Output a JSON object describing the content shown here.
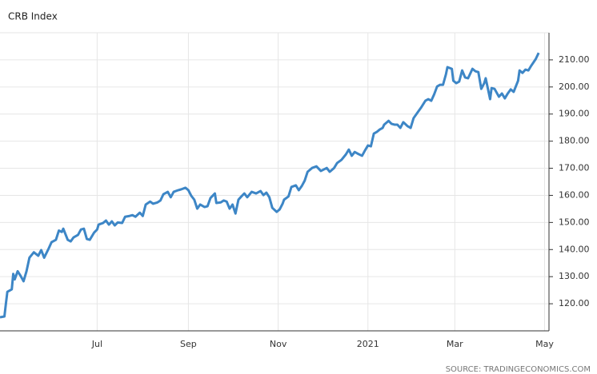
{
  "chart_data": {
    "type": "line",
    "title": "CRB Index",
    "source": "SOURCE: TRADINGECONOMICS.COM",
    "x": [
      0,
      3,
      4,
      5,
      8,
      9,
      10,
      12,
      14,
      16,
      18,
      20,
      23,
      26,
      28,
      30,
      33,
      35,
      38,
      40,
      42,
      43,
      46,
      48,
      50,
      53,
      55,
      57,
      59,
      61,
      64,
      66,
      67,
      70,
      72,
      74,
      76,
      78,
      80,
      83,
      85,
      88,
      90,
      92,
      95,
      97,
      99,
      102,
      104,
      107,
      109,
      111,
      114,
      116,
      118,
      121,
      123,
      126,
      128,
      130,
      132,
      134,
      136,
      139,
      141,
      143,
      146,
      147,
      150,
      152,
      154,
      156,
      158,
      160,
      162,
      164,
      166,
      168,
      171,
      174,
      177,
      179,
      181,
      183,
      185,
      188,
      190,
      192,
      193,
      196,
      198,
      201,
      203,
      205,
      207,
      209,
      212,
      215,
      218,
      222,
      224,
      227,
      229,
      232,
      235,
      237,
      239,
      241,
      243,
      246,
      248,
      250,
      252,
      254,
      256,
      258,
      260,
      261,
      264,
      266,
      268,
      270,
      272,
      274,
      277,
      279,
      281,
      284,
      286,
      289,
      291,
      293,
      295,
      297,
      299,
      301,
      303,
      304,
      307,
      308,
      310,
      312,
      314,
      316,
      318,
      321,
      323,
      325,
      327,
      329,
      330,
      333,
      334,
      336,
      339,
      341,
      343,
      345,
      347,
      349,
      352,
      353,
      355,
      357,
      359,
      361,
      364,
      366
    ],
    "series": [
      {
        "name": "CRB Index",
        "color": "#3d86c6",
        "values": [
          115,
          115.3,
          120,
          124.4,
          125.3,
          131,
          129,
          132,
          130.3,
          128.3,
          132,
          137,
          139,
          137.7,
          139.8,
          137,
          140.3,
          142.7,
          143.6,
          147,
          146.5,
          147.7,
          143.6,
          143,
          144.5,
          145.4,
          147.4,
          147.7,
          143.9,
          143.6,
          146.3,
          147.4,
          149.2,
          149.8,
          150.7,
          149.2,
          150.4,
          148.9,
          150,
          149.8,
          152.1,
          152.4,
          152.7,
          152.1,
          153.6,
          152.4,
          156.6,
          157.7,
          156.9,
          157.4,
          158.1,
          160.4,
          161.3,
          159.3,
          161.3,
          161.9,
          162.2,
          162.8,
          161.9,
          159.8,
          158.4,
          155.1,
          156.6,
          155.7,
          156,
          159,
          160.7,
          157.2,
          157.4,
          158.1,
          157.7,
          155.1,
          156.6,
          153.3,
          158.4,
          159.6,
          160.7,
          159.3,
          161.3,
          160.7,
          161.6,
          160.1,
          161,
          159.3,
          155.4,
          153.9,
          154.8,
          156.9,
          158.4,
          159.6,
          163.1,
          163.7,
          161.9,
          163.4,
          165.4,
          168.7,
          170.1,
          170.7,
          169,
          170.1,
          168.7,
          170.1,
          171.9,
          173.1,
          175.1,
          176.9,
          174.6,
          176,
          175.4,
          174.6,
          176.6,
          178.4,
          178.1,
          182.8,
          183.4,
          184.3,
          184.9,
          186.1,
          187.5,
          186.4,
          186.1,
          186.1,
          184.9,
          187,
          185.5,
          184.9,
          188.5,
          190.8,
          192.3,
          194.9,
          195.5,
          194.9,
          197.3,
          200.2,
          200.8,
          200.8,
          204.7,
          207.3,
          206.7,
          202.3,
          201.4,
          202,
          206.1,
          203.5,
          203.2,
          206.7,
          205.8,
          205.5,
          199.3,
          201.4,
          203.2,
          195.5,
          199.6,
          199.3,
          196.4,
          197.6,
          195.8,
          197.6,
          199.1,
          198.2,
          202.3,
          206.1,
          205.2,
          206.4,
          206.1,
          207.9,
          210.3,
          212.6
        ]
      }
    ],
    "xlim": [
      0,
      373
    ],
    "xticks": [
      {
        "value": 66,
        "label": "Jul"
      },
      {
        "value": 128,
        "label": "Sep"
      },
      {
        "value": 189,
        "label": "Nov"
      },
      {
        "value": 250,
        "label": "2021"
      },
      {
        "value": 309,
        "label": "Mar"
      },
      {
        "value": 370,
        "label": "May"
      }
    ],
    "ylim": [
      110,
      220
    ],
    "yticks": [
      {
        "value": 120,
        "label": "120.00"
      },
      {
        "value": 130,
        "label": "130.00"
      },
      {
        "value": 140,
        "label": "140.00"
      },
      {
        "value": 150,
        "label": "150.00"
      },
      {
        "value": 160,
        "label": "160.00"
      },
      {
        "value": 170,
        "label": "170.00"
      },
      {
        "value": 180,
        "label": "180.00"
      },
      {
        "value": 190,
        "label": "190.00"
      },
      {
        "value": 200,
        "label": "200.00"
      },
      {
        "value": 210,
        "label": "210.00"
      }
    ],
    "grid": true
  }
}
